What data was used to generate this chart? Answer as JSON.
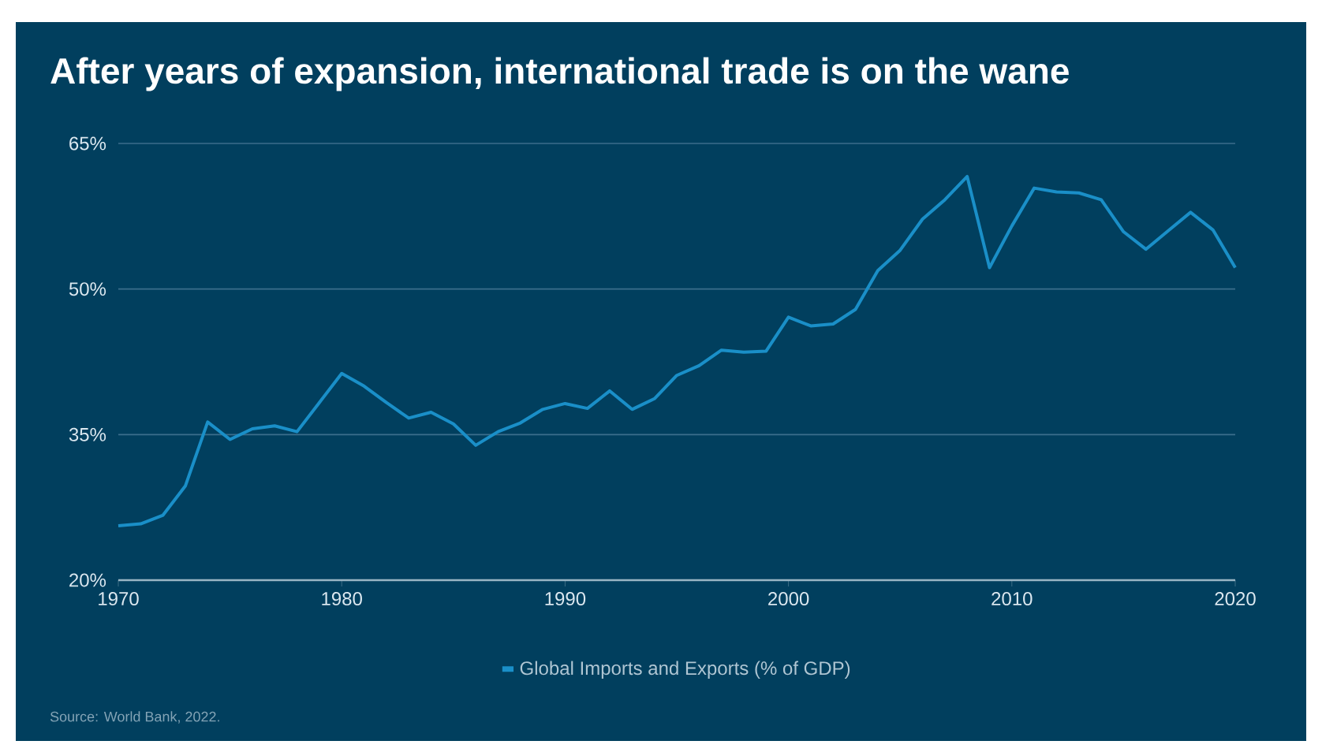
{
  "chart_data": {
    "type": "line",
    "title": "After years of expansion, international trade is on the wane",
    "x": [
      1970,
      1971,
      1972,
      1973,
      1974,
      1975,
      1976,
      1977,
      1978,
      1979,
      1980,
      1981,
      1982,
      1983,
      1984,
      1985,
      1986,
      1987,
      1988,
      1989,
      1990,
      1991,
      1992,
      1993,
      1994,
      1995,
      1996,
      1997,
      1998,
      1999,
      2000,
      2001,
      2002,
      2003,
      2004,
      2005,
      2006,
      2007,
      2008,
      2009,
      2010,
      2011,
      2012,
      2013,
      2014,
      2015,
      2016,
      2017,
      2018,
      2019,
      2020
    ],
    "series": [
      {
        "name": "Global Imports and Exports (% of GDP)",
        "color": "#1a8fc8",
        "values": [
          25.6,
          25.8,
          26.7,
          29.7,
          36.3,
          34.5,
          35.6,
          35.9,
          35.3,
          38.3,
          41.3,
          40.0,
          38.3,
          36.7,
          37.3,
          36.1,
          33.9,
          35.3,
          36.2,
          37.6,
          38.2,
          37.7,
          39.5,
          37.6,
          38.7,
          41.1,
          42.1,
          43.7,
          43.5,
          43.6,
          47.1,
          46.2,
          46.4,
          47.9,
          51.9,
          54.0,
          57.2,
          59.2,
          61.6,
          52.2,
          56.5,
          60.4,
          60.0,
          59.9,
          59.2,
          55.9,
          54.1,
          56.0,
          57.9,
          56.1,
          52.2
        ]
      }
    ],
    "xlim": [
      1970,
      2020
    ],
    "xticks": [
      1970,
      1980,
      1990,
      2000,
      2010,
      2020
    ],
    "ylim": [
      20,
      65
    ],
    "yticks": [
      {
        "value": 20,
        "label": "20%"
      },
      {
        "value": 35,
        "label": "35%"
      },
      {
        "value": 50,
        "label": "50%"
      },
      {
        "value": 65,
        "label": "65%"
      }
    ],
    "grid": "y",
    "legend": "bottom",
    "marker": "none",
    "line_style": "solid",
    "annotations": [
      "Source: World Bank, 2022."
    ]
  }
}
